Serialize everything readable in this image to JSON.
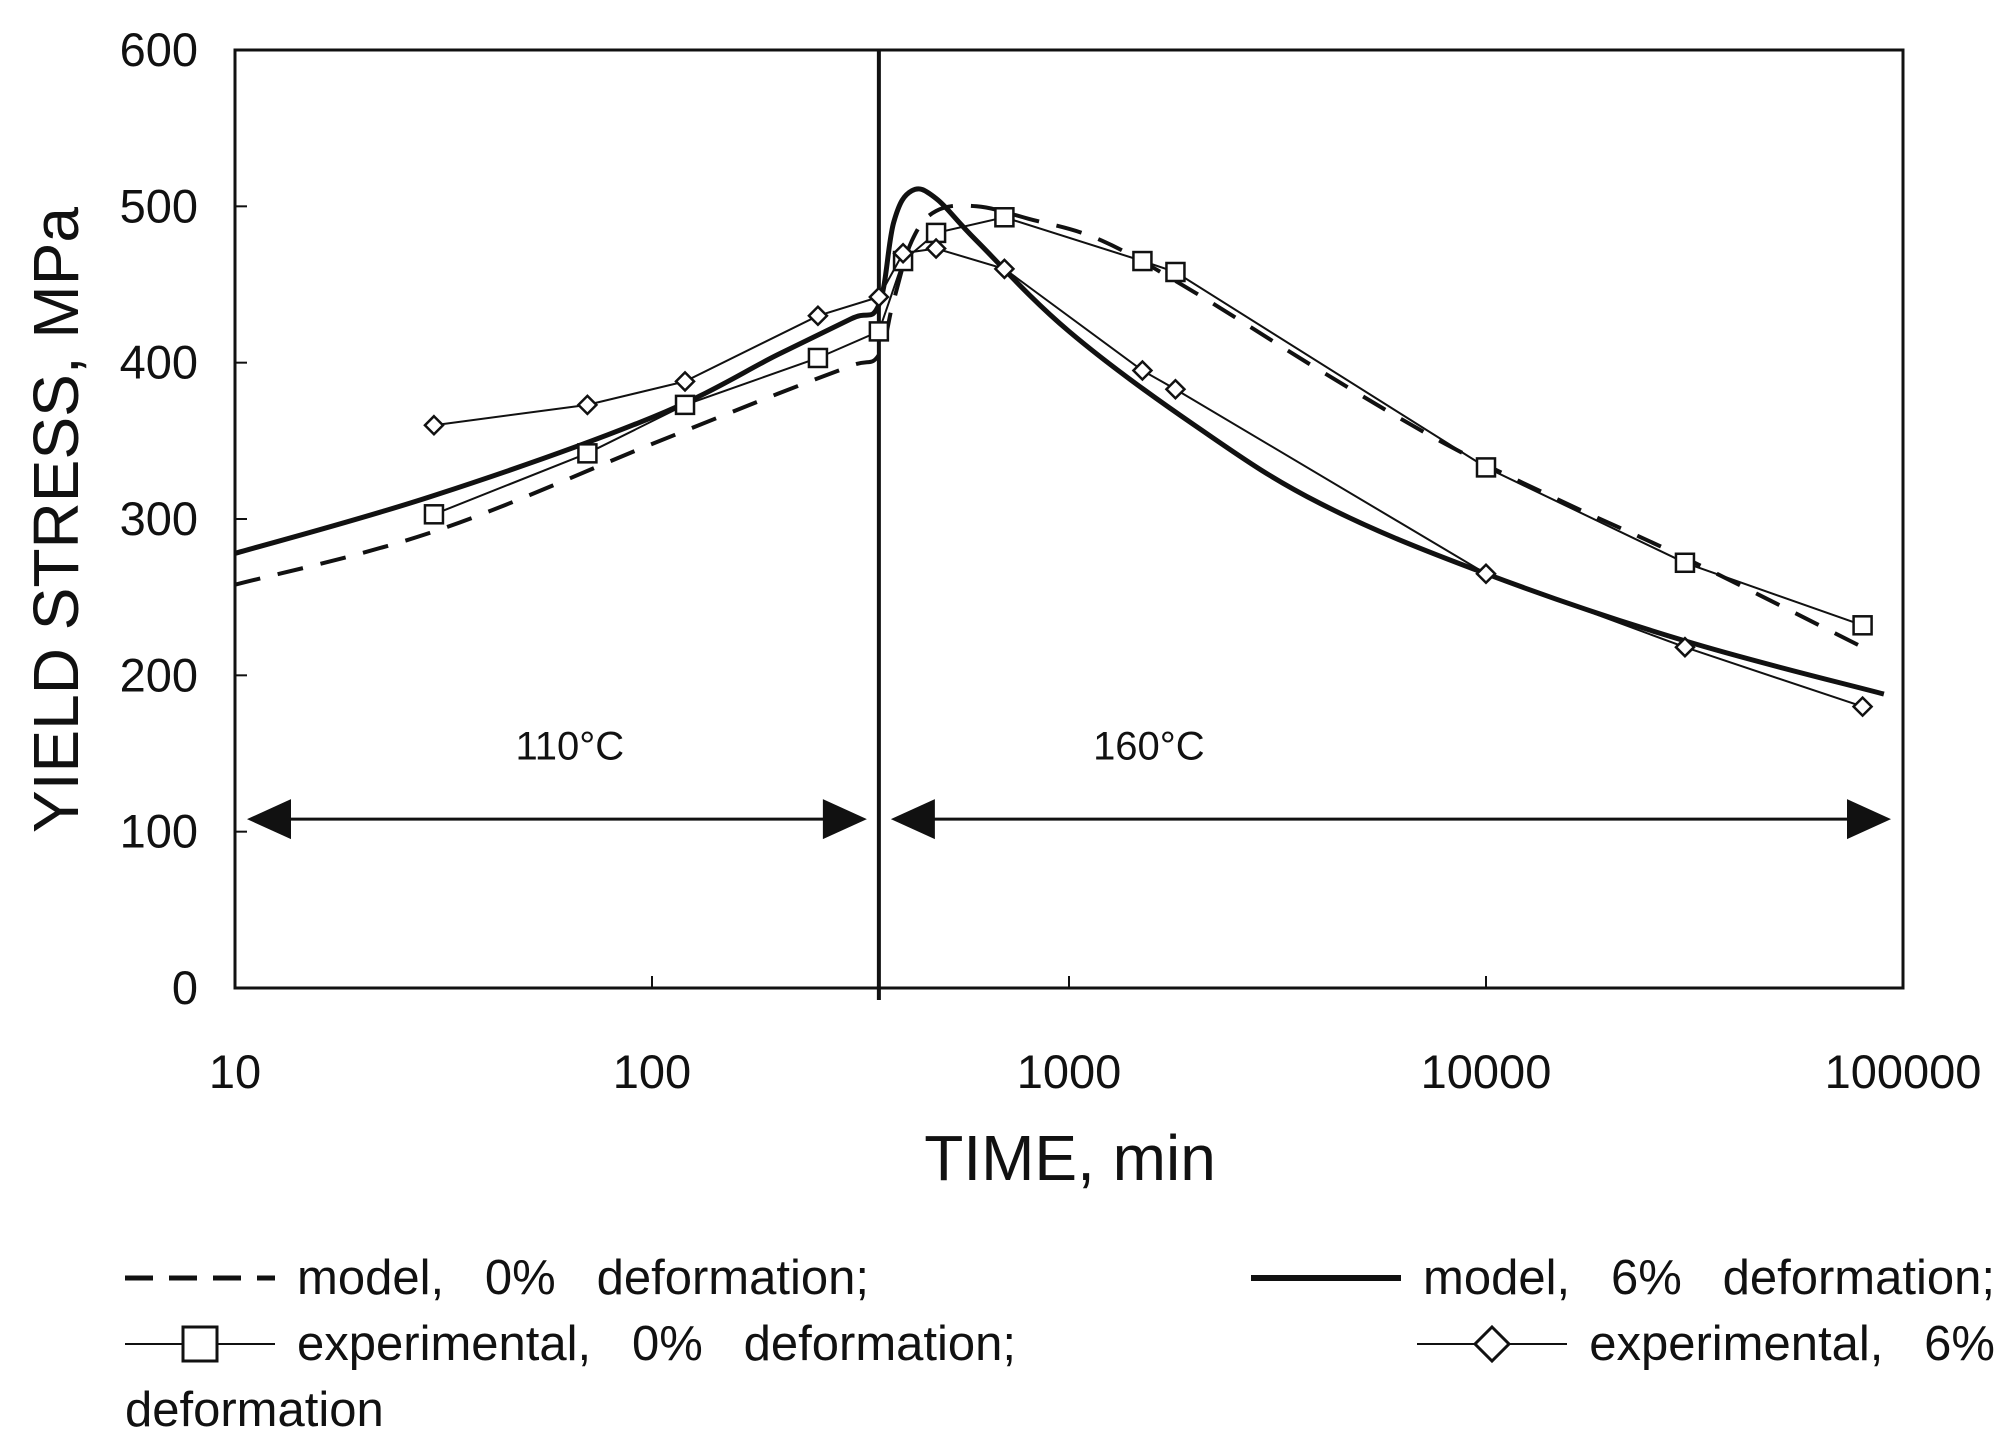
{
  "chart_data": {
    "type": "line",
    "xscale": "log",
    "xlabel": "TIME, min",
    "ylabel": "YIELD STRESS, MPa",
    "xlim": [
      10,
      100000
    ],
    "ylim": [
      0,
      600
    ],
    "x_ticks": [
      10,
      100,
      1000,
      10000,
      100000
    ],
    "x_tick_labels": [
      "10",
      "100",
      "1000",
      "10000",
      "100000"
    ],
    "y_ticks": [
      0,
      100,
      200,
      300,
      400,
      500,
      600
    ],
    "y_tick_labels": [
      "0",
      "100",
      "200",
      "300",
      "400",
      "500",
      "600"
    ],
    "stage_boundary_x": 350,
    "regions": [
      {
        "label": "110°C",
        "x_start": 10,
        "x_end": 350,
        "y": 108,
        "label_y": 155
      },
      {
        "label": "160°C",
        "x_start": 350,
        "x_end": 100000,
        "y": 108,
        "label_y": 155
      }
    ],
    "series": [
      {
        "name": "model, 0% deformation",
        "style": "dashed",
        "x": [
          10,
          30,
          100,
          200,
          300,
          350,
          380,
          420,
          480,
          600,
          800,
          1200,
          2000,
          4000,
          8000,
          15000,
          30000,
          80000
        ],
        "y": [
          258,
          292,
          348,
          380,
          398,
          405,
          440,
          478,
          497,
          500,
          492,
          478,
          445,
          395,
          348,
          312,
          275,
          218
        ]
      },
      {
        "name": "model, 6% deformation",
        "style": "solid-bold",
        "x": [
          10,
          30,
          100,
          200,
          300,
          350,
          380,
          420,
          480,
          600,
          1000,
          2000,
          4000,
          10000,
          30000,
          90000
        ],
        "y": [
          278,
          315,
          365,
          405,
          428,
          437,
          490,
          510,
          505,
          478,
          420,
          360,
          310,
          265,
          222,
          188
        ]
      },
      {
        "name": "experimental, 0% deformation",
        "style": "square",
        "x": [
          30,
          70,
          120,
          250,
          350,
          400,
          480,
          700,
          1500,
          1800,
          10000,
          30000,
          80000
        ],
        "y": [
          303,
          342,
          373,
          403,
          420,
          465,
          483,
          493,
          465,
          458,
          333,
          272,
          232
        ]
      },
      {
        "name": "experimental, 6% deformation",
        "style": "diamond",
        "x": [
          30,
          70,
          120,
          250,
          350,
          400,
          480,
          700,
          1500,
          1800,
          10000,
          30000,
          80000
        ],
        "y": [
          360,
          373,
          388,
          430,
          442,
          470,
          473,
          460,
          395,
          383,
          265,
          218,
          180
        ]
      }
    ]
  },
  "legend": {
    "model_0": "model,   0%   deformation;",
    "model_6": "model,   6%   deformation;",
    "exp_0": "experimental,   0%   deformation;",
    "exp_6_a": "experimental,   6%",
    "exp_6_b": "deformation"
  }
}
